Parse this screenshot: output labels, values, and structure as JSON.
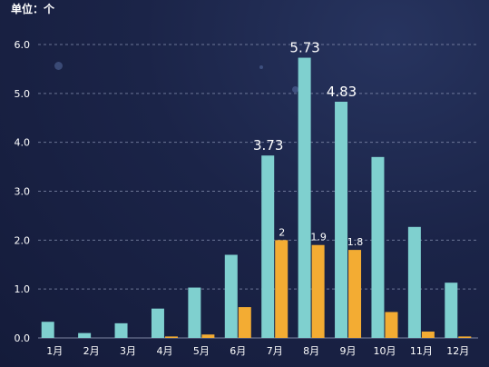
{
  "chart_data": {
    "type": "bar",
    "unit_label": "单位：个",
    "categories": [
      "1月",
      "2月",
      "3月",
      "4月",
      "5月",
      "6月",
      "7月",
      "8月",
      "9月",
      "10月",
      "11月",
      "12月"
    ],
    "series": [
      {
        "values": [
          0.33,
          0.1,
          0.3,
          0.6,
          1.03,
          1.7,
          3.73,
          5.73,
          4.83,
          3.7,
          2.27,
          1.13
        ],
        "color": "#7fd0cf"
      },
      {
        "values": [
          0,
          0,
          0,
          0.03,
          0.07,
          0.63,
          2,
          1.9,
          1.8,
          0.53,
          0.13,
          0.03
        ],
        "color": "#f3ac33"
      }
    ],
    "data_labels": [
      {
        "series": 0,
        "index": 6,
        "text": "3.73"
      },
      {
        "series": 0,
        "index": 7,
        "text": "5.73"
      },
      {
        "series": 0,
        "index": 8,
        "text": "4.83"
      },
      {
        "series": 1,
        "index": 6,
        "text": "2"
      },
      {
        "series": 1,
        "index": 7,
        "text": "1.9"
      },
      {
        "series": 1,
        "index": 8,
        "text": "1.8"
      }
    ],
    "yticks": [
      "0.0",
      "1.0",
      "2.0",
      "3.0",
      "4.0",
      "5.0",
      "6.0"
    ],
    "ylim": [
      0,
      6
    ],
    "grid": true,
    "colors": {
      "grid": "#8f99b8",
      "text": "#ffffff"
    }
  }
}
